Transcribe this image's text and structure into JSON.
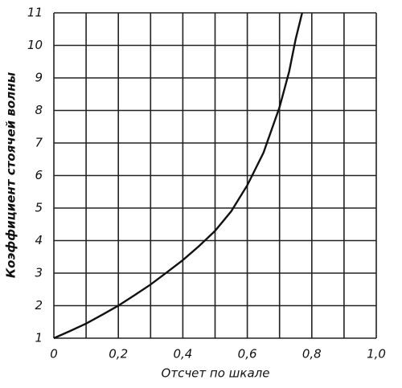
{
  "chart_data": {
    "type": "line",
    "x_label": "Отсчет по шкале",
    "y_label": "Коэффициент стоячей волны",
    "x": [
      0,
      0.05,
      0.1,
      0.15,
      0.2,
      0.25,
      0.3,
      0.35,
      0.4,
      0.45,
      0.5,
      0.55,
      0.6,
      0.65,
      0.7,
      0.73,
      0.75,
      0.77
    ],
    "values": [
      1,
      1.22,
      1.45,
      1.72,
      2.0,
      2.32,
      2.65,
      3.02,
      3.4,
      3.83,
      4.3,
      4.9,
      5.7,
      6.7,
      8.1,
      9.2,
      10.2,
      11
    ],
    "color": "#111111",
    "xlim": [
      0,
      1.0
    ],
    "ylim": [
      1,
      11
    ],
    "xticks": [
      {
        "value": 0,
        "label": "0"
      },
      {
        "value": 0.2,
        "label": "0,2"
      },
      {
        "value": 0.4,
        "label": "0,4"
      },
      {
        "value": 0.6,
        "label": "0,6"
      },
      {
        "value": 0.8,
        "label": "0,8"
      },
      {
        "value": 1.0,
        "label": "1,0"
      }
    ],
    "xgrid": [
      0,
      0.1,
      0.2,
      0.3,
      0.4,
      0.5,
      0.6,
      0.7,
      0.8,
      0.9,
      1.0
    ],
    "yticks": [
      1,
      2,
      3,
      4,
      5,
      6,
      7,
      8,
      9,
      10,
      11
    ],
    "grid": true
  }
}
